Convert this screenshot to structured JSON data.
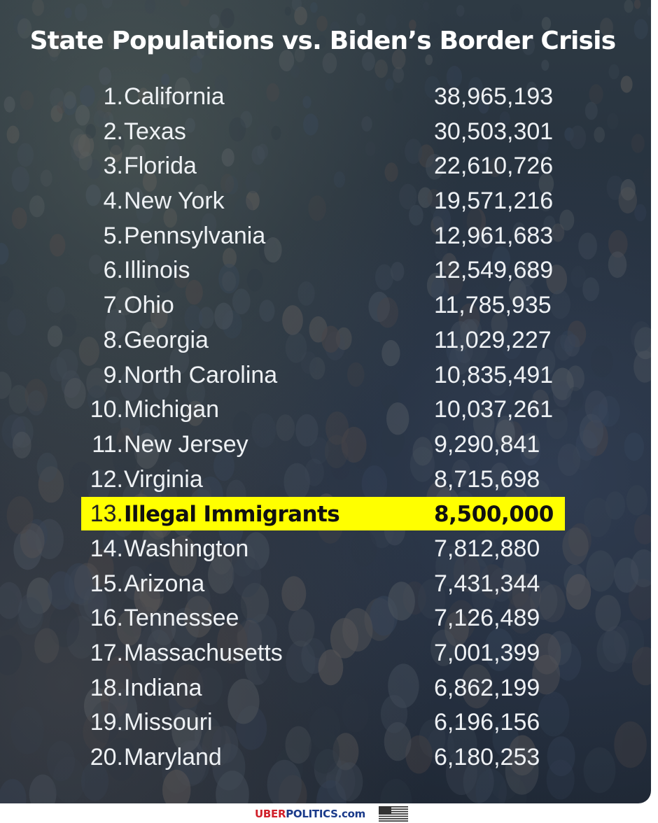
{
  "title": "State Populations vs. Biden’s Border Crisis",
  "chart_data": {
    "type": "table",
    "title": "State Populations vs. Biden’s Border Crisis",
    "rows": [
      {
        "rank": "1.",
        "name": "California",
        "value": "38,965,193"
      },
      {
        "rank": "2.",
        "name": "Texas",
        "value": "30,503,301"
      },
      {
        "rank": "3.",
        "name": "Florida",
        "value": "22,610,726"
      },
      {
        "rank": "4.",
        "name": "New York",
        "value": "19,571,216"
      },
      {
        "rank": "5.",
        "name": "Pennsylvania",
        "value": "12,961,683"
      },
      {
        "rank": "6.",
        "name": "Illinois",
        "value": "12,549,689"
      },
      {
        "rank": "7.",
        "name": "Ohio",
        "value": "11,785,935"
      },
      {
        "rank": "8.",
        "name": "Georgia",
        "value": "11,029,227"
      },
      {
        "rank": "9.",
        "name": "North Carolina",
        "value": "10,835,491"
      },
      {
        "rank": "10.",
        "name": "Michigan",
        "value": "10,037,261"
      },
      {
        "rank": "11.",
        "name": "New Jersey",
        "value": "9,290,841"
      },
      {
        "rank": "12.",
        "name": "Virginia",
        "value": "8,715,698"
      },
      {
        "rank": "13.",
        "name": "Illegal Immigrants",
        "value": "8,500,000",
        "highlighted": true
      },
      {
        "rank": "14.",
        "name": "Washington",
        "value": "7,812,880"
      },
      {
        "rank": "15.",
        "name": "Arizona",
        "value": "7,431,344"
      },
      {
        "rank": "16.",
        "name": "Tennessee",
        "value": "7,126,489"
      },
      {
        "rank": "17.",
        "name": "Massachusetts",
        "value": "7,001,399"
      },
      {
        "rank": "18.",
        "name": "Indiana",
        "value": "6,862,199"
      },
      {
        "rank": "19.",
        "name": "Missouri",
        "value": "6,196,156"
      },
      {
        "rank": "20.",
        "name": "Maryland",
        "value": "6,180,253"
      }
    ],
    "highlight_color": "#ffff00"
  },
  "footer": {
    "site_uber": "UBER",
    "site_politics": "POLITICS",
    "site_com": ".com",
    "flag_icon": "us-flag-icon"
  },
  "colors": {
    "text": "#eef1f4",
    "highlight": "#ffff00",
    "brand_red": "#d0202a",
    "brand_blue": "#1a3a8a"
  }
}
